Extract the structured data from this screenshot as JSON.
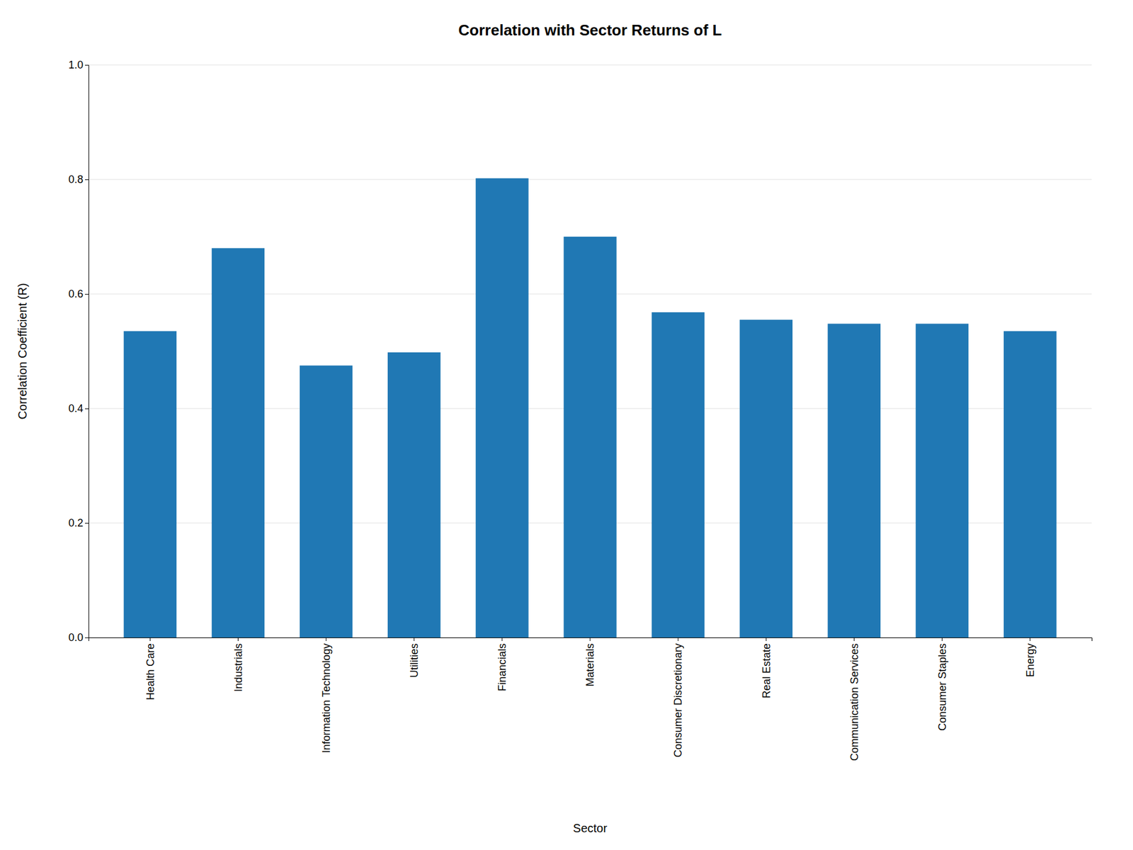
{
  "chart_data": {
    "type": "bar",
    "title": "Correlation with Sector Returns of L",
    "x_label": "Sector",
    "y_label": "Correlation Coefficient (R)",
    "categories": [
      "Health Care",
      "Industrials",
      "Information Technology",
      "Utilities",
      "Financials",
      "Materials",
      "Consumer Discretionary",
      "Real Estate",
      "Communication Services",
      "Consumer Staples",
      "Energy"
    ],
    "values": [
      0.535,
      0.68,
      0.475,
      0.498,
      0.802,
      0.7,
      0.568,
      0.555,
      0.548,
      0.548,
      0.535
    ],
    "color": "#2078b4",
    "ylim": [
      0.0,
      1.0
    ],
    "yticks": [
      {
        "value": 0,
        "label": "0.0"
      },
      0.2,
      0.4,
      0.6,
      0.8,
      {
        "value": 1,
        "label": "1.0"
      }
    ],
    "grid": true
  }
}
